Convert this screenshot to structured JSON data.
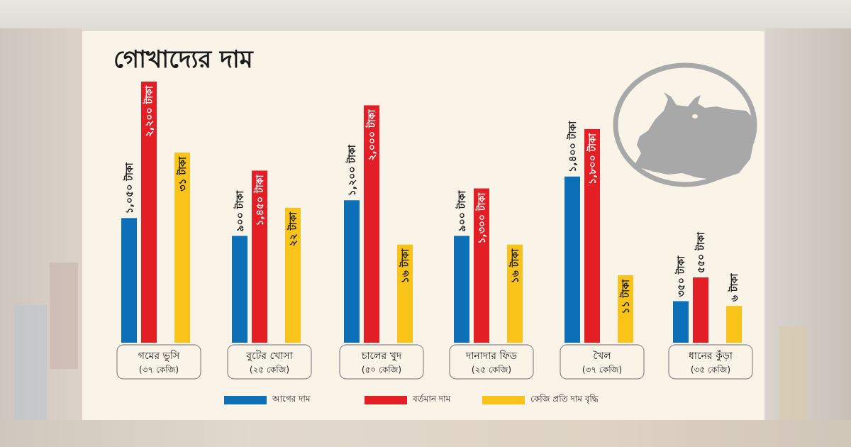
{
  "title": "গোখাদ্যের দাম",
  "colors": {
    "previous": "#0d6fb8",
    "current": "#e31e25",
    "increase": "#f9c31a",
    "panel": "#f9f3e8",
    "cow": "#a8a8a8"
  },
  "legend": [
    "আগের দাম",
    "বর্তমান দাম",
    "কেজি প্রতি দাম বৃদ্ধি"
  ],
  "chart_data": {
    "type": "bar",
    "title": "গোখাদ্যের দাম",
    "categories": [
      {
        "name": "গমের ভুসি",
        "unit": "(৩৭ কেজি)"
      },
      {
        "name": "বুটের খোসা",
        "unit": "(২৫ কেজি)"
      },
      {
        "name": "চালের খুদ",
        "unit": "(৫০ কেজি)"
      },
      {
        "name": "দানাদার ফিড",
        "unit": "(২৫ কেজি)"
      },
      {
        "name": "খৈল",
        "unit": "(৩৭ কেজি)"
      },
      {
        "name": "ধানের কুঁড়া",
        "unit": "(৩৫ কেজি)"
      }
    ],
    "series": [
      {
        "name": "আগের দাম",
        "values": [
          1050,
          900,
          1200,
          900,
          1400,
          350
        ],
        "labels": [
          "১,০৫০ টাকা",
          "৯০০ টাকা",
          "১,২০০ টাকা",
          "৯০০ টাকা",
          "১,৪০০ টাকা",
          "৩৫০ টাকা"
        ]
      },
      {
        "name": "বর্তমান দাম",
        "values": [
          2200,
          1450,
          2000,
          1300,
          1800,
          550
        ],
        "labels": [
          "২,২০০ টাকা",
          "১,৪৫০ টাকা",
          "২,০০০ টাকা",
          "১,৩০০ টাকা",
          "১,৮০০ টাকা",
          "৫৫০ টাকা"
        ]
      },
      {
        "name": "কেজি প্রতি দাম বৃদ্ধি",
        "values": [
          31,
          22,
          16,
          16,
          11,
          6
        ],
        "labels": [
          "৩১ টাকা",
          "২২ টাকা",
          "১৬ টাকা",
          "১৬ টাকা",
          "১১ টাকা",
          "৬ টাকা"
        ]
      }
    ],
    "legend_position": "bottom",
    "grid": false
  }
}
